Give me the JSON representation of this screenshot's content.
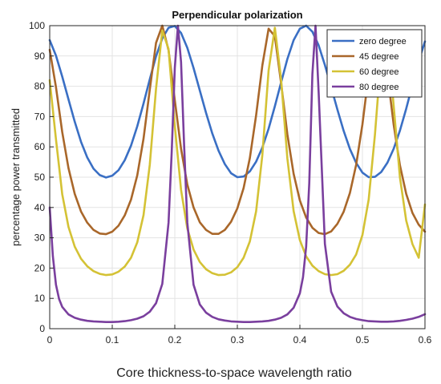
{
  "chart_data": {
    "type": "line",
    "title": "Perpendicular polarization",
    "xlabel": "Core thickness-to-space wavelength ratio",
    "ylabel": "percentage power transmitted",
    "xlim": [
      0,
      0.6
    ],
    "ylim": [
      0,
      100
    ],
    "xticks": [
      "0",
      "0.1",
      "0.2",
      "0.3",
      "0.4",
      "0.5",
      "0.6"
    ],
    "yticks": [
      "0",
      "10",
      "20",
      "30",
      "40",
      "50",
      "60",
      "70",
      "80",
      "90",
      "100"
    ],
    "grid": true,
    "legend_position": "top-right",
    "series": [
      {
        "name": "zero degree",
        "color": "#3a6fc4",
        "x": [
          0,
          0.01,
          0.02,
          0.03,
          0.04,
          0.05,
          0.06,
          0.07,
          0.08,
          0.09,
          0.1,
          0.11,
          0.12,
          0.13,
          0.14,
          0.15,
          0.16,
          0.17,
          0.18,
          0.19,
          0.2,
          0.21,
          0.22,
          0.23,
          0.24,
          0.25,
          0.26,
          0.27,
          0.28,
          0.29,
          0.3,
          0.31,
          0.32,
          0.33,
          0.34,
          0.35,
          0.36,
          0.37,
          0.38,
          0.39,
          0.4,
          0.41,
          0.42,
          0.43,
          0.44,
          0.45,
          0.46,
          0.47,
          0.48,
          0.49,
          0.5,
          0.51,
          0.52,
          0.53,
          0.54,
          0.55,
          0.56,
          0.57,
          0.58,
          0.59,
          0.6
        ],
        "y": [
          95.2,
          90.1,
          83.2,
          75.7,
          68.3,
          61.7,
          56.5,
          52.8,
          50.7,
          49.9,
          50.5,
          52.3,
          55.6,
          60.4,
          66.8,
          74.3,
          82.3,
          89.9,
          95.8,
          99.3,
          99.9,
          97.6,
          92.7,
          86.0,
          78.6,
          71.2,
          64.4,
          58.7,
          54.3,
          51.3,
          50.0,
          50.2,
          51.9,
          55.1,
          59.8,
          66.0,
          73.4,
          81.3,
          89.0,
          95.2,
          99.0,
          100.0,
          98.0,
          93.5,
          87.0,
          79.7,
          72.3,
          65.3,
          59.3,
          54.7,
          51.5,
          50.0,
          50.1,
          51.7,
          54.8,
          59.4,
          65.4,
          72.6,
          80.5,
          88.3,
          94.8
        ]
      },
      {
        "name": "45 degree",
        "color": "#a9672a",
        "x": [
          0,
          0.01,
          0.02,
          0.03,
          0.04,
          0.05,
          0.06,
          0.07,
          0.08,
          0.09,
          0.1,
          0.11,
          0.12,
          0.13,
          0.14,
          0.15,
          0.16,
          0.17,
          0.18,
          0.19,
          0.2,
          0.21,
          0.22,
          0.23,
          0.24,
          0.25,
          0.26,
          0.27,
          0.28,
          0.29,
          0.3,
          0.31,
          0.32,
          0.33,
          0.34,
          0.35,
          0.36,
          0.37,
          0.38,
          0.39,
          0.4,
          0.41,
          0.42,
          0.43,
          0.44,
          0.45,
          0.46,
          0.47,
          0.48,
          0.49,
          0.5,
          0.51,
          0.52,
          0.53,
          0.54,
          0.55,
          0.56,
          0.57,
          0.58,
          0.59,
          0.6
        ],
        "y": [
          92.0,
          79.7,
          64.9,
          53.0,
          44.5,
          38.7,
          35.0,
          32.6,
          31.4,
          31.2,
          32.0,
          34.0,
          37.4,
          42.6,
          50.6,
          62.7,
          78.9,
          94.3,
          100.0,
          91.9,
          75.4,
          59.4,
          47.6,
          40.0,
          35.1,
          32.6,
          31.3,
          31.3,
          32.6,
          35.3,
          39.7,
          46.4,
          56.3,
          70.4,
          86.9,
          99.0,
          96.5,
          81.0,
          64.1,
          51.1,
          42.3,
          36.7,
          33.3,
          31.6,
          31.2,
          32.1,
          34.6,
          38.6,
          44.8,
          54.1,
          67.4,
          84.0,
          97.8,
          98.3,
          84.2,
          67.3,
          53.9,
          44.5,
          38.2,
          34.3,
          32.0
        ]
      },
      {
        "name": "60 degree",
        "color": "#d4c235",
        "x": [
          0,
          0.01,
          0.02,
          0.03,
          0.04,
          0.05,
          0.06,
          0.07,
          0.08,
          0.09,
          0.1,
          0.11,
          0.12,
          0.13,
          0.14,
          0.15,
          0.16,
          0.17,
          0.18,
          0.19,
          0.2,
          0.21,
          0.22,
          0.23,
          0.24,
          0.25,
          0.26,
          0.27,
          0.28,
          0.29,
          0.3,
          0.31,
          0.32,
          0.33,
          0.34,
          0.35,
          0.36,
          0.37,
          0.38,
          0.39,
          0.4,
          0.41,
          0.42,
          0.43,
          0.44,
          0.45,
          0.46,
          0.47,
          0.48,
          0.49,
          0.5,
          0.51,
          0.52,
          0.53,
          0.54,
          0.55,
          0.56,
          0.57,
          0.58,
          0.59,
          0.6
        ],
        "y": [
          82.0,
          62.5,
          44.4,
          33.6,
          27.1,
          23.1,
          20.6,
          19.0,
          18.1,
          17.7,
          17.9,
          18.8,
          20.5,
          23.4,
          28.5,
          37.5,
          54.1,
          79.2,
          98.4,
          92.3,
          66.9,
          45.8,
          33.1,
          26.1,
          22.0,
          19.6,
          18.3,
          17.7,
          17.8,
          18.6,
          20.3,
          23.4,
          28.8,
          38.7,
          57.3,
          85.2,
          99.3,
          82.2,
          56.2,
          38.8,
          29.2,
          23.9,
          20.8,
          19.0,
          18.0,
          17.7,
          18.0,
          19.1,
          21.1,
          24.5,
          30.9,
          42.6,
          64.0,
          90.5,
          97.6,
          73.4,
          49.9,
          35.7,
          27.9,
          23.4,
          41.0
        ]
      },
      {
        "name": "80 degree",
        "color": "#7a3f9e",
        "x": [
          0,
          0.005,
          0.01,
          0.015,
          0.02,
          0.03,
          0.04,
          0.05,
          0.06,
          0.07,
          0.08,
          0.09,
          0.1,
          0.11,
          0.12,
          0.13,
          0.14,
          0.15,
          0.16,
          0.17,
          0.18,
          0.19,
          0.195,
          0.2,
          0.205,
          0.21,
          0.215,
          0.22,
          0.23,
          0.24,
          0.25,
          0.26,
          0.27,
          0.28,
          0.29,
          0.3,
          0.31,
          0.32,
          0.33,
          0.34,
          0.35,
          0.36,
          0.37,
          0.38,
          0.39,
          0.4,
          0.405,
          0.41,
          0.415,
          0.42,
          0.425,
          0.43,
          0.44,
          0.45,
          0.46,
          0.47,
          0.48,
          0.49,
          0.5,
          0.51,
          0.52,
          0.53,
          0.54,
          0.55,
          0.56,
          0.57,
          0.58,
          0.59,
          0.6
        ],
        "y": [
          40.0,
          24.0,
          14.5,
          9.8,
          7.2,
          4.7,
          3.6,
          3.0,
          2.6,
          2.4,
          2.3,
          2.2,
          2.2,
          2.3,
          2.5,
          2.8,
          3.3,
          4.1,
          5.6,
          8.4,
          14.8,
          35.0,
          58.0,
          86.0,
          100.0,
          88.0,
          60.0,
          35.0,
          14.5,
          8.0,
          5.3,
          3.9,
          3.1,
          2.7,
          2.4,
          2.3,
          2.2,
          2.2,
          2.3,
          2.4,
          2.6,
          3.0,
          3.6,
          4.7,
          6.9,
          11.7,
          17.0,
          27.0,
          48.0,
          84.0,
          100.0,
          78.0,
          28.0,
          12.2,
          7.3,
          5.1,
          3.9,
          3.2,
          2.8,
          2.5,
          2.4,
          2.3,
          2.3,
          2.4,
          2.6,
          2.9,
          3.3,
          3.9,
          4.8
        ]
      }
    ]
  }
}
